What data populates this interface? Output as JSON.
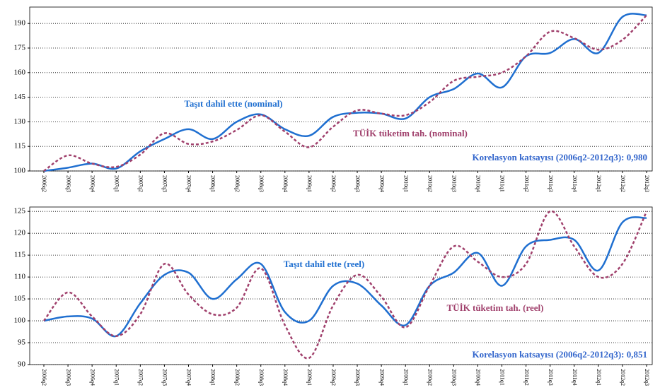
{
  "chart_data": [
    {
      "type": "line",
      "categories": [
        "2006q2",
        "2006q3",
        "2006q4",
        "2007q1",
        "2007q2",
        "2007q3",
        "2007q4",
        "2008q1",
        "2008q2",
        "2008q3",
        "2008q4",
        "2009q1",
        "2009q2",
        "2009q3",
        "2009q4",
        "2010q1",
        "2010q2",
        "2010q3",
        "2010q4",
        "2011q1",
        "2011q2",
        "2011q3",
        "2011q4",
        "2012q1",
        "2012q2",
        "2012q3"
      ],
      "series": [
        {
          "name": "Taşıt dahil ette (nominal)",
          "color": "#1f6fd0",
          "style": "solid",
          "values": [
            100,
            102,
            104.5,
            101.5,
            112,
            119.5,
            125.5,
            119.5,
            130,
            134.5,
            125.5,
            121.5,
            133,
            135.5,
            135,
            132,
            145,
            150,
            159.5,
            151,
            170,
            172,
            180.5,
            172,
            194,
            195
          ]
        },
        {
          "name": "TÜİK tüketim tah. (nominal)",
          "color": "#a0406c",
          "style": "dashed",
          "values": [
            100,
            109.5,
            104.5,
            102.5,
            110,
            123,
            116.5,
            118,
            125,
            134,
            124,
            114.5,
            127,
            137,
            135,
            134,
            142,
            155,
            157.5,
            160,
            170,
            185,
            181,
            174,
            180,
            195
          ]
        }
      ],
      "annotation": "Korelasyon katsayısı (2006q2-2012q3): 0,980",
      "ylim": [
        100,
        200
      ],
      "yticks": [
        100,
        115,
        130,
        145,
        160,
        175,
        190
      ],
      "grid": true
    },
    {
      "type": "line",
      "categories": [
        "2006q2",
        "2006q3",
        "2006q4",
        "2007q1",
        "2007q2",
        "2007q3",
        "2007q4",
        "2008q1",
        "2008q2",
        "2008q3",
        "2008q4",
        "2009q1",
        "2009q2",
        "2009q3",
        "2009q4",
        "2010q1",
        "2010q2",
        "2010q3",
        "2010q4",
        "2011q1",
        "2011q2",
        "2011q3",
        "2011q4",
        "2012q1",
        "2012q2",
        "2012q3"
      ],
      "series": [
        {
          "name": "Taşıt dahil ette (reel)",
          "color": "#1f6fd0",
          "style": "solid",
          "values": [
            100,
            101,
            100.5,
            96.5,
            104,
            110.5,
            111,
            105,
            109.5,
            113,
            102,
            100,
            108,
            108.5,
            103.5,
            99,
            108,
            111,
            115.5,
            108,
            117,
            118.5,
            118.5,
            111.5,
            122.5,
            123.5
          ]
        },
        {
          "name": "TÜİK tüketim tah. (reel)",
          "color": "#a0406c",
          "style": "dashed",
          "values": [
            100,
            106.5,
            101,
            96.5,
            101.5,
            113,
            106,
            101.5,
            103,
            112,
            99,
            91.5,
            103.5,
            110.5,
            105.5,
            98.5,
            108,
            117,
            113.5,
            110,
            113,
            125,
            117,
            110,
            113,
            125
          ]
        }
      ],
      "annotation": "Korelasyon katsayısı (2006q2-2012q3): 0,851",
      "ylim": [
        90,
        126
      ],
      "yticks": [
        90,
        95,
        100,
        105,
        110,
        115,
        120,
        125
      ],
      "grid": true
    }
  ]
}
